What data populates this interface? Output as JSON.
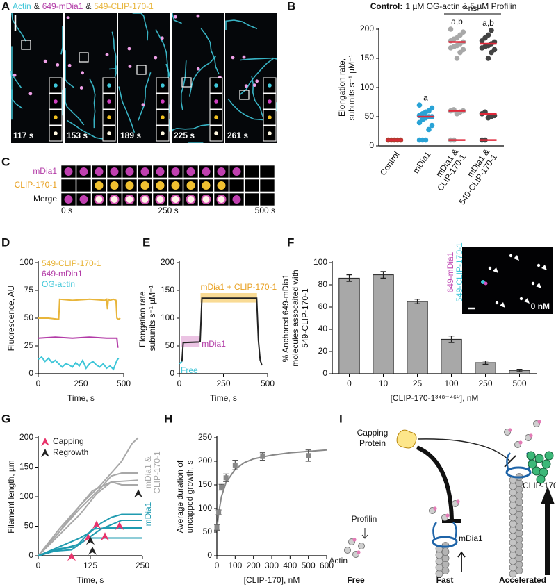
{
  "panel_a": {
    "panel": "A",
    "legend": [
      "Actin",
      "&",
      "649-mDia1",
      "&",
      "549-CLIP-170-1"
    ],
    "legend_colors": [
      "#3ec6d8",
      "#222222",
      "#b23aa6",
      "#222222",
      "#e8b53a"
    ],
    "time_labels": [
      "117 s",
      "153 s",
      "189 s",
      "225 s",
      "261 s"
    ]
  },
  "panel_c": {
    "panel": "C",
    "rows": [
      "mDia1",
      "CLIP-170-1",
      "Merge"
    ],
    "time_labels": [
      "0 s",
      "250 s",
      "500 s"
    ]
  },
  "panel_i": {
    "panel": "I",
    "capping_protein": [
      "Capping",
      "Protein"
    ],
    "profilin": "Profilin",
    "actin": "Actin",
    "mdia1": "mDia1",
    "clip170": "CLIP-170",
    "stages": [
      "Free",
      "Fast",
      "Accelerated"
    ]
  },
  "chart_data": [
    {
      "panel": "B",
      "type": "strip",
      "title_bold": "Control:",
      "title": "1 µM OG-actin & 5 µM Profilin",
      "ylabel": [
        "Elongation rate,",
        "subunits s⁻¹ µM⁻¹"
      ],
      "categories": [
        [
          "Control"
        ],
        [
          "mDia1"
        ],
        [
          "mDia1 &",
          "CLIP-170-1"
        ],
        [
          "mDia1 &",
          "549-CLIP-170-1"
        ]
      ],
      "colors": [
        "#b03a2e",
        "#29a3d6",
        "#a8a8a8",
        "#444444"
      ],
      "points": [
        [
          10,
          10,
          10,
          10,
          10
        ],
        [
          10,
          10,
          10,
          28,
          35,
          40,
          45,
          48,
          50,
          50,
          52,
          55,
          58,
          60,
          65,
          70
        ],
        [
          10,
          10,
          55,
          58,
          60,
          60,
          62,
          150,
          160,
          165,
          168,
          170,
          172,
          175,
          178,
          180,
          183,
          185,
          190,
          195,
          200
        ],
        [
          10,
          10,
          48,
          50,
          52,
          55,
          58,
          150,
          160,
          165,
          168,
          170,
          172,
          175,
          178,
          180,
          185,
          190,
          198
        ]
      ],
      "medians": [
        [
          10
        ],
        [
          50
        ],
        [
          178,
          60,
          10
        ],
        [
          175,
          55,
          10
        ]
      ],
      "median_color": "#e0283a",
      "category_annotations": [
        null,
        "a",
        "a,b",
        "a,b"
      ],
      "bracket_label": "ns",
      "ylim": [
        0,
        200
      ],
      "yticks": [
        0,
        50,
        100,
        150,
        200
      ]
    },
    {
      "panel": "D",
      "type": "line",
      "legend": "upper left",
      "ylabel": [
        "Fluorescence, AU"
      ],
      "xlabel": "Time, s",
      "xlim": [
        0,
        500
      ],
      "xticks": [
        0,
        250,
        500
      ],
      "ylim": [
        0,
        100
      ],
      "yticks": [
        0,
        25,
        50,
        75,
        100
      ],
      "series": [
        {
          "name": "549-CLIP-170-1",
          "color": "#e8b53a",
          "x": [
            0,
            60,
            120,
            125,
            200,
            300,
            390,
            400,
            405,
            410,
            420,
            440,
            455,
            460,
            470,
            480
          ],
          "values": [
            50,
            50,
            49,
            67,
            66,
            67,
            66,
            67,
            58,
            67,
            66,
            67,
            66,
            50,
            49,
            50
          ]
        },
        {
          "name": "649-mDia1",
          "color": "#b23aa6",
          "x": [
            0,
            100,
            200,
            300,
            400,
            460,
            465,
            470
          ],
          "values": [
            32,
            33,
            32,
            33,
            32,
            32,
            24,
            24
          ]
        },
        {
          "name": "OG-actin",
          "color": "#3ec6d8",
          "x": [
            0,
            20,
            40,
            60,
            80,
            100,
            120,
            140,
            160,
            180,
            200,
            220,
            240,
            260,
            280,
            300,
            320,
            340,
            360,
            380,
            400,
            420,
            440,
            460,
            470
          ],
          "values": [
            13,
            15,
            11,
            14,
            10,
            12,
            9,
            6,
            9,
            8,
            6,
            10,
            7,
            12,
            5,
            9,
            11,
            8,
            6,
            9,
            5,
            7,
            4,
            12,
            14
          ]
        }
      ]
    },
    {
      "panel": "E",
      "type": "line",
      "ylabel": [
        "Elongation rate,",
        "subunits s⁻¹ µM⁻¹"
      ],
      "xlabel": "Time, s",
      "xlim": [
        0,
        500
      ],
      "xticks": [
        0,
        250,
        500
      ],
      "ylim": [
        0,
        200
      ],
      "yticks": [
        0,
        50,
        100,
        150,
        200
      ],
      "bands": [
        {
          "name": "mDia1",
          "color": "#e6b4dc",
          "text_color": "#b23aa6",
          "x": [
            10,
            115
          ],
          "y": [
            48,
            68
          ]
        },
        {
          "name": "mDia1 + CLIP-170-1",
          "color": "#f7d27a",
          "text_color": "#e8a020",
          "x": [
            120,
            440
          ],
          "y": [
            128,
            145
          ]
        }
      ],
      "series": [
        {
          "name": "Free",
          "color": "#3ec6d8",
          "x": [
            0,
            15
          ],
          "values": [
            18,
            22
          ]
        },
        {
          "color": "#222222",
          "x": [
            15,
            22,
            110,
            118,
            128,
            438,
            448,
            458,
            468
          ],
          "values": [
            22,
            56,
            57,
            58,
            136,
            136,
            60,
            25,
            15
          ]
        }
      ]
    },
    {
      "panel": "F",
      "type": "bar",
      "categories": [
        "0",
        "10",
        "25",
        "100",
        "250",
        "500"
      ],
      "values": [
        86,
        89,
        65,
        31,
        10,
        3
      ],
      "errors": [
        3,
        3,
        2,
        3,
        1.5,
        1
      ],
      "color": "#a8a8a8",
      "ylabel": [
        "% Anchored 649-mDia1",
        "molecules assocaited with",
        "549-CLIP-170-1"
      ],
      "xlabel": "[CLIP-170-1³⁴⁸⁻⁴⁶⁰], nM",
      "ylim": [
        0,
        100
      ],
      "yticks": [
        0,
        20,
        40,
        60,
        80,
        100
      ],
      "inset": {
        "labels": [
          "649-mDia1",
          "549-CLIP-170-1"
        ],
        "label_colors": [
          "#c04ab4",
          "#3ec6d8"
        ],
        "concentration": "0 nM"
      }
    },
    {
      "panel": "G",
      "type": "line",
      "ylabel": [
        "Filament length, µm"
      ],
      "xlabel": "Time, s",
      "xlim": [
        0,
        250
      ],
      "xticks": [
        0,
        125,
        250
      ],
      "ylim": [
        0,
        200
      ],
      "yticks": [
        0,
        50,
        100,
        150,
        200
      ],
      "groups": [
        {
          "name": [
            "mDia1 &",
            "CLIP-170-1"
          ],
          "color": "#a8a8a8",
          "lines": [
            {
              "x": [
                0,
                50,
                100,
                150,
                200,
                225,
                240
              ],
              "values": [
                0,
                45,
                85,
                120,
                160,
                190,
                200
              ]
            },
            {
              "x": [
                0,
                50,
                100,
                150,
                175,
                200,
                240
              ],
              "values": [
                0,
                40,
                80,
                115,
                135,
                140,
                140
              ]
            },
            {
              "x": [
                0,
                50,
                100,
                140,
                175,
                200,
                240
              ],
              "values": [
                0,
                35,
                70,
                105,
                125,
                120,
                120
              ]
            },
            {
              "x": [
                0,
                50,
                100,
                130,
                175,
                240
              ],
              "values": [
                0,
                40,
                85,
                110,
                125,
                128
              ]
            }
          ]
        },
        {
          "name": [
            "mDia1"
          ],
          "color": "#1f9bb0",
          "lines": [
            {
              "x": [
                0,
                50,
                100,
                125,
                150,
                175,
                200,
                250
              ],
              "values": [
                0,
                15,
                30,
                40,
                55,
                65,
                70,
                70
              ]
            },
            {
              "x": [
                0,
                50,
                100,
                130,
                150,
                200,
                250
              ],
              "values": [
                0,
                10,
                20,
                35,
                45,
                60,
                60
              ]
            },
            {
              "x": [
                0,
                50,
                90,
                130,
                160,
                250
              ],
              "values": [
                0,
                12,
                15,
                45,
                47,
                47
              ]
            },
            {
              "x": [
                0,
                40,
                80,
                120,
                250
              ],
              "values": [
                0,
                8,
                10,
                30,
                30
              ]
            }
          ]
        }
      ],
      "arrows": [
        {
          "name": "Capping",
          "color": "#e8336b",
          "x": [
            80,
            120,
            140,
            160,
            195
          ],
          "y": [
            8,
            40,
            62,
            42,
            60
          ]
        },
        {
          "name": "Regrowth",
          "color": "#222222",
          "x": [
            125,
            130,
            240
          ],
          "y": [
            35,
            18,
            115
          ]
        }
      ]
    },
    {
      "panel": "H",
      "type": "scatter",
      "ylabel": [
        "Average duration of",
        "uncapped growth, s"
      ],
      "xlabel": "[CLIP-170], nM",
      "xlim": [
        0,
        600
      ],
      "xticks": [
        0,
        100,
        200,
        300,
        400,
        500,
        600
      ],
      "ylim": [
        0,
        250
      ],
      "yticks": [
        0,
        50,
        100,
        150,
        200,
        250
      ],
      "x": [
        0,
        10,
        25,
        50,
        100,
        250,
        500
      ],
      "values": [
        60,
        92,
        145,
        165,
        192,
        210,
        212
      ],
      "errors": [
        6,
        5,
        6,
        8,
        10,
        8,
        12
      ],
      "color": "#888888",
      "curve": {
        "x": [
          0,
          10,
          25,
          50,
          100,
          150,
          200,
          300,
          400,
          500,
          600
        ],
        "values": [
          55,
          90,
          125,
          155,
          183,
          197,
          205,
          213,
          218,
          221,
          224
        ]
      }
    }
  ]
}
